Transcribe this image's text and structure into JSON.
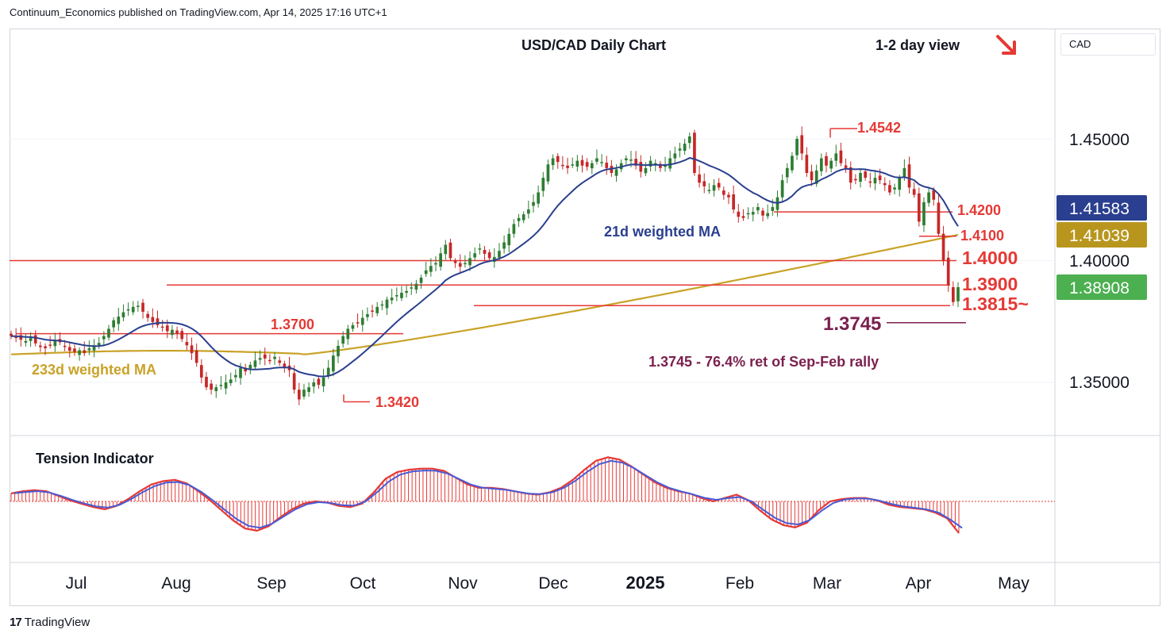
{
  "publisher": "Continuum_Economics published on TradingView.com, Apr 14, 2025 17:16 UTC+1",
  "currency_label": "CAD",
  "footer_brand": "TradingView",
  "colors": {
    "up": "#2e7d32",
    "down": "#c62828",
    "level": "#e53935",
    "ma21": "#2a3f8f",
    "ma233": "#c9a227",
    "purple": "#7b1f4e",
    "tension_line": "#4a5bd6",
    "tension_fill": "#e53935"
  },
  "chart_data": {
    "type": "candlestick",
    "title": "USD/CAD Daily Chart",
    "view_label": "1-2 day view",
    "view_direction": "down",
    "x_ticks": [
      "Jul",
      "Aug",
      "Sep",
      "Oct",
      "Nov",
      "Dec",
      "2025",
      "Feb",
      "Mar",
      "Apr",
      "May"
    ],
    "y_ticks": [
      "1.45000",
      "1.40000",
      "1.35000"
    ],
    "ylim": [
      1.33,
      1.48
    ],
    "price_tags": [
      {
        "value": "1.41583",
        "color": "#2a3f8f"
      },
      {
        "value": "1.41039",
        "color": "#b8961e"
      },
      {
        "value": "1.40000",
        "color": "#ffffff"
      },
      {
        "value": "1.38908",
        "color": "#4caf50"
      }
    ],
    "levels": [
      {
        "label": "1.4542",
        "value": 1.4542
      },
      {
        "label": "1.4200",
        "value": 1.42
      },
      {
        "label": "1.4100",
        "value": 1.41
      },
      {
        "label": "1.4000",
        "value": 1.4
      },
      {
        "label": "1.3900",
        "value": 1.39
      },
      {
        "label": "1.3815~",
        "value": 1.3815
      },
      {
        "label": "1.3745",
        "value": 1.3745
      },
      {
        "label": "1.3700",
        "value": 1.37
      },
      {
        "label": "1.3420",
        "value": 1.342
      }
    ],
    "annotations": [
      "21d weighted MA",
      "233d weighted MA",
      "1.3745 - 76.4% ret of Sep-Feb rally"
    ],
    "series": [
      {
        "name": "USD/CAD",
        "closes": [
          1.369,
          1.3685,
          1.3675,
          1.367,
          1.3682,
          1.366,
          1.3645,
          1.364,
          1.3655,
          1.3672,
          1.3665,
          1.3648,
          1.363,
          1.3625,
          1.3632,
          1.362,
          1.364,
          1.365,
          1.3662,
          1.369,
          1.372,
          1.3755,
          1.377,
          1.3788,
          1.38,
          1.381,
          1.3815,
          1.379,
          1.3765,
          1.3748,
          1.3735,
          1.3728,
          1.371,
          1.3716,
          1.3702,
          1.3678,
          1.3652,
          1.362,
          1.358,
          1.352,
          1.348,
          1.347,
          1.348,
          1.349,
          1.35,
          1.3512,
          1.353,
          1.356,
          1.3545,
          1.3572,
          1.359,
          1.36,
          1.3598,
          1.359,
          1.3605,
          1.358,
          1.356,
          1.355,
          1.347,
          1.343,
          1.347,
          1.348,
          1.35,
          1.349,
          1.352,
          1.356,
          1.361,
          1.365,
          1.369,
          1.372,
          1.3735,
          1.3745,
          1.3765,
          1.378,
          1.379,
          1.381,
          1.382,
          1.384,
          1.3848,
          1.3858,
          1.3868,
          1.3875,
          1.389,
          1.3905,
          1.393,
          1.396,
          1.3978,
          1.399,
          1.403,
          1.4065,
          1.401,
          1.399,
          1.3975,
          1.399,
          1.401,
          1.403,
          1.405,
          1.4028,
          1.401,
          1.4015,
          1.404,
          1.4075,
          1.411,
          1.415,
          1.4175,
          1.419,
          1.421,
          1.424,
          1.428,
          1.434,
          1.4395,
          1.442,
          1.4405,
          1.439,
          1.438,
          1.4395,
          1.441,
          1.439,
          1.4385,
          1.44,
          1.442,
          1.4405,
          1.438,
          1.436,
          1.4375,
          1.44,
          1.442,
          1.4415,
          1.439,
          1.4365,
          1.438,
          1.441,
          1.44,
          1.438,
          1.439,
          1.442,
          1.444,
          1.446,
          1.448,
          1.451,
          1.436,
          1.432,
          1.4305,
          1.429,
          1.431,
          1.43,
          1.427,
          1.426,
          1.421,
          1.418,
          1.4175,
          1.4195,
          1.42,
          1.422,
          1.4185,
          1.4195,
          1.422,
          1.426,
          1.433,
          1.438,
          1.443,
          1.45,
          1.444,
          1.436,
          1.433,
          1.437,
          1.442,
          1.439,
          1.441,
          1.444,
          1.44,
          1.438,
          1.432,
          1.433,
          1.436,
          1.434,
          1.432,
          1.434,
          1.433,
          1.431,
          1.428,
          1.43,
          1.434,
          1.438,
          1.43,
          1.427,
          1.416,
          1.424,
          1.428,
          1.425,
          1.411,
          1.4,
          1.39,
          1.383,
          1.3891
        ]
      },
      {
        "name": "21d weighted MA",
        "note": "smoothed"
      },
      {
        "name": "233d weighted MA",
        "note": "smoothed"
      }
    ],
    "tension_indicator": {
      "title": "Tension Indicator",
      "values": [
        0.35,
        0.45,
        0.5,
        0.45,
        0.25,
        0.05,
        -0.1,
        -0.25,
        -0.35,
        -0.2,
        0.1,
        0.45,
        0.75,
        0.9,
        0.95,
        0.8,
        0.45,
        0.05,
        -0.4,
        -0.85,
        -1.2,
        -1.3,
        -1.1,
        -0.7,
        -0.35,
        -0.1,
        0.0,
        -0.05,
        -0.2,
        -0.25,
        -0.1,
        0.4,
        1.0,
        1.3,
        1.4,
        1.45,
        1.45,
        1.35,
        1.05,
        0.75,
        0.6,
        0.6,
        0.55,
        0.45,
        0.35,
        0.3,
        0.4,
        0.6,
        0.95,
        1.4,
        1.8,
        1.95,
        1.85,
        1.55,
        1.2,
        0.85,
        0.6,
        0.45,
        0.35,
        0.15,
        0.0,
        0.15,
        0.3,
        0.05,
        -0.4,
        -0.8,
        -1.05,
        -1.15,
        -0.95,
        -0.4,
        0.0,
        0.1,
        0.15,
        0.15,
        0.05,
        -0.15,
        -0.25,
        -0.3,
        -0.35,
        -0.5,
        -0.75,
        -1.4
      ]
    }
  }
}
